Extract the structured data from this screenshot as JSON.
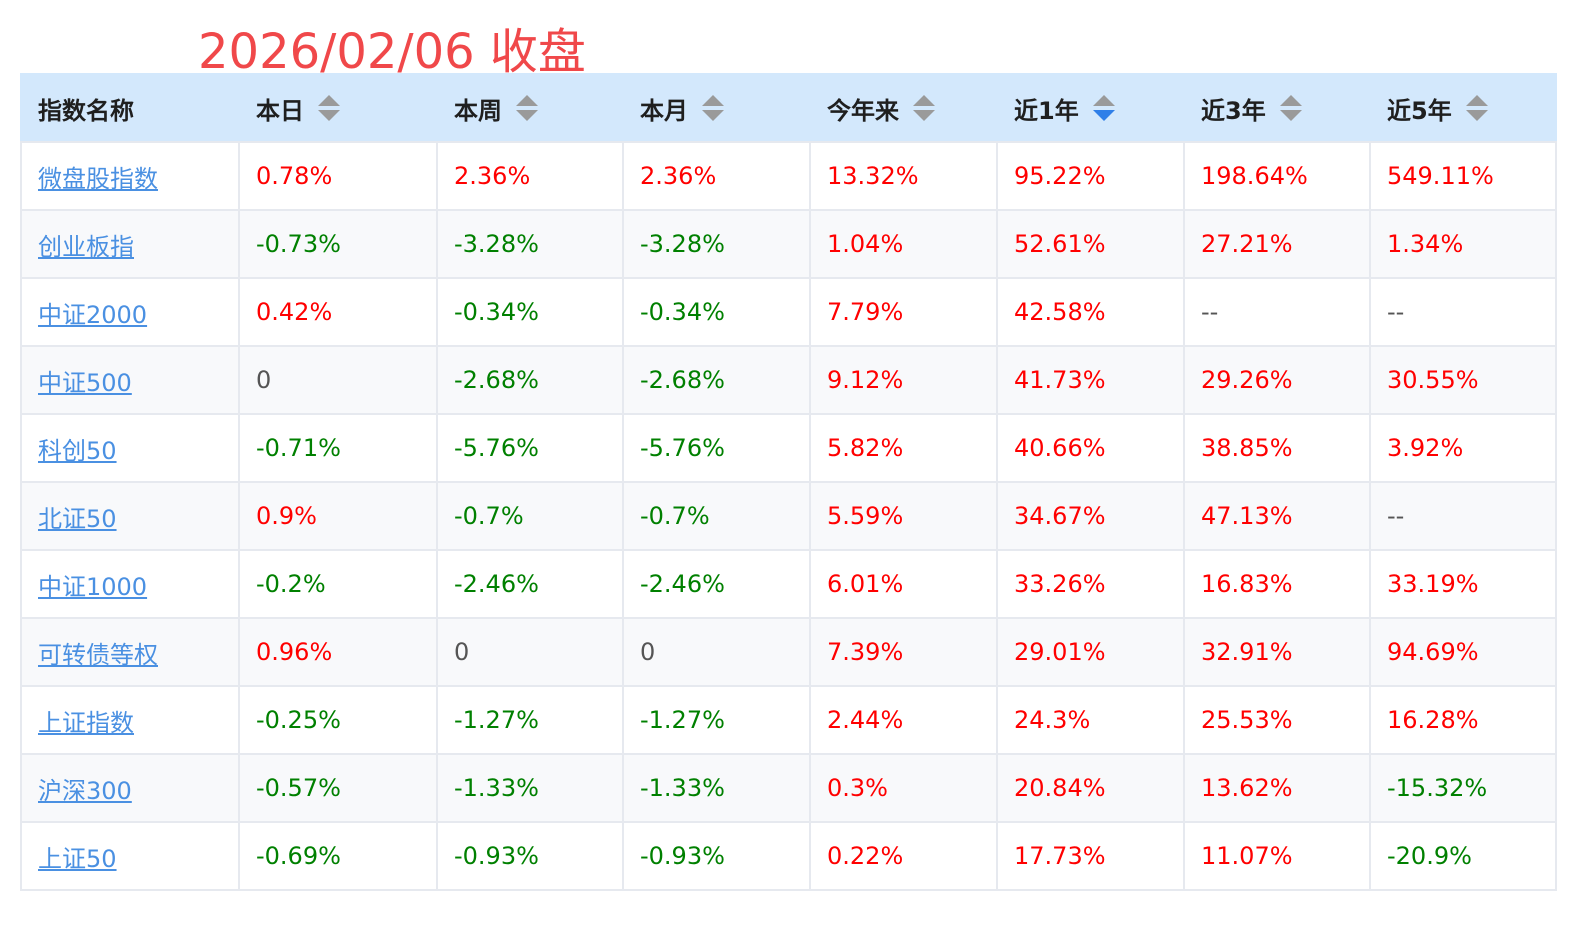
{
  "title": "2026/02/06 收盘",
  "colors": {
    "positive": "#ff0000",
    "negative": "#008000",
    "neutral": "#555555",
    "link": "#4a90e2",
    "header_bg": "#d3e8fc",
    "title": "#f0484a",
    "active_sort": "#2f7fe8"
  },
  "table": {
    "headers": [
      "指数名称",
      "本日",
      "本周",
      "本月",
      "今年来",
      "近1年",
      "近3年",
      "近5年"
    ],
    "sortable": [
      false,
      true,
      true,
      true,
      true,
      true,
      true,
      true
    ],
    "active_sort": {
      "column": 5,
      "direction": "descending",
      "icon": "sort-descending-icon"
    },
    "rows": [
      [
        "微盘股指数",
        "0.78%",
        "2.36%",
        "2.36%",
        "13.32%",
        "95.22%",
        "198.64%",
        "549.11%"
      ],
      [
        "创业板指",
        "-0.73%",
        "-3.28%",
        "-3.28%",
        "1.04%",
        "52.61%",
        "27.21%",
        "1.34%"
      ],
      [
        "中证2000",
        "0.42%",
        "-0.34%",
        "-0.34%",
        "7.79%",
        "42.58%",
        "--",
        "--"
      ],
      [
        "中证500",
        "0",
        "-2.68%",
        "-2.68%",
        "9.12%",
        "41.73%",
        "29.26%",
        "30.55%"
      ],
      [
        "科创50",
        "-0.71%",
        "-5.76%",
        "-5.76%",
        "5.82%",
        "40.66%",
        "38.85%",
        "3.92%"
      ],
      [
        "北证50",
        "0.9%",
        "-0.7%",
        "-0.7%",
        "5.59%",
        "34.67%",
        "47.13%",
        "--"
      ],
      [
        "中证1000",
        "-0.2%",
        "-2.46%",
        "-2.46%",
        "6.01%",
        "33.26%",
        "16.83%",
        "33.19%"
      ],
      [
        "可转债等权",
        "0.96%",
        "0",
        "0",
        "7.39%",
        "29.01%",
        "32.91%",
        "94.69%"
      ],
      [
        "上证指数",
        "-0.25%",
        "-1.27%",
        "-1.27%",
        "2.44%",
        "24.3%",
        "25.53%",
        "16.28%"
      ],
      [
        "沪深300",
        "-0.57%",
        "-1.33%",
        "-1.33%",
        "0.3%",
        "20.84%",
        "13.62%",
        "-15.32%"
      ],
      [
        "上证50",
        "-0.69%",
        "-0.93%",
        "-0.93%",
        "0.22%",
        "17.73%",
        "11.07%",
        "-20.9%"
      ]
    ]
  }
}
